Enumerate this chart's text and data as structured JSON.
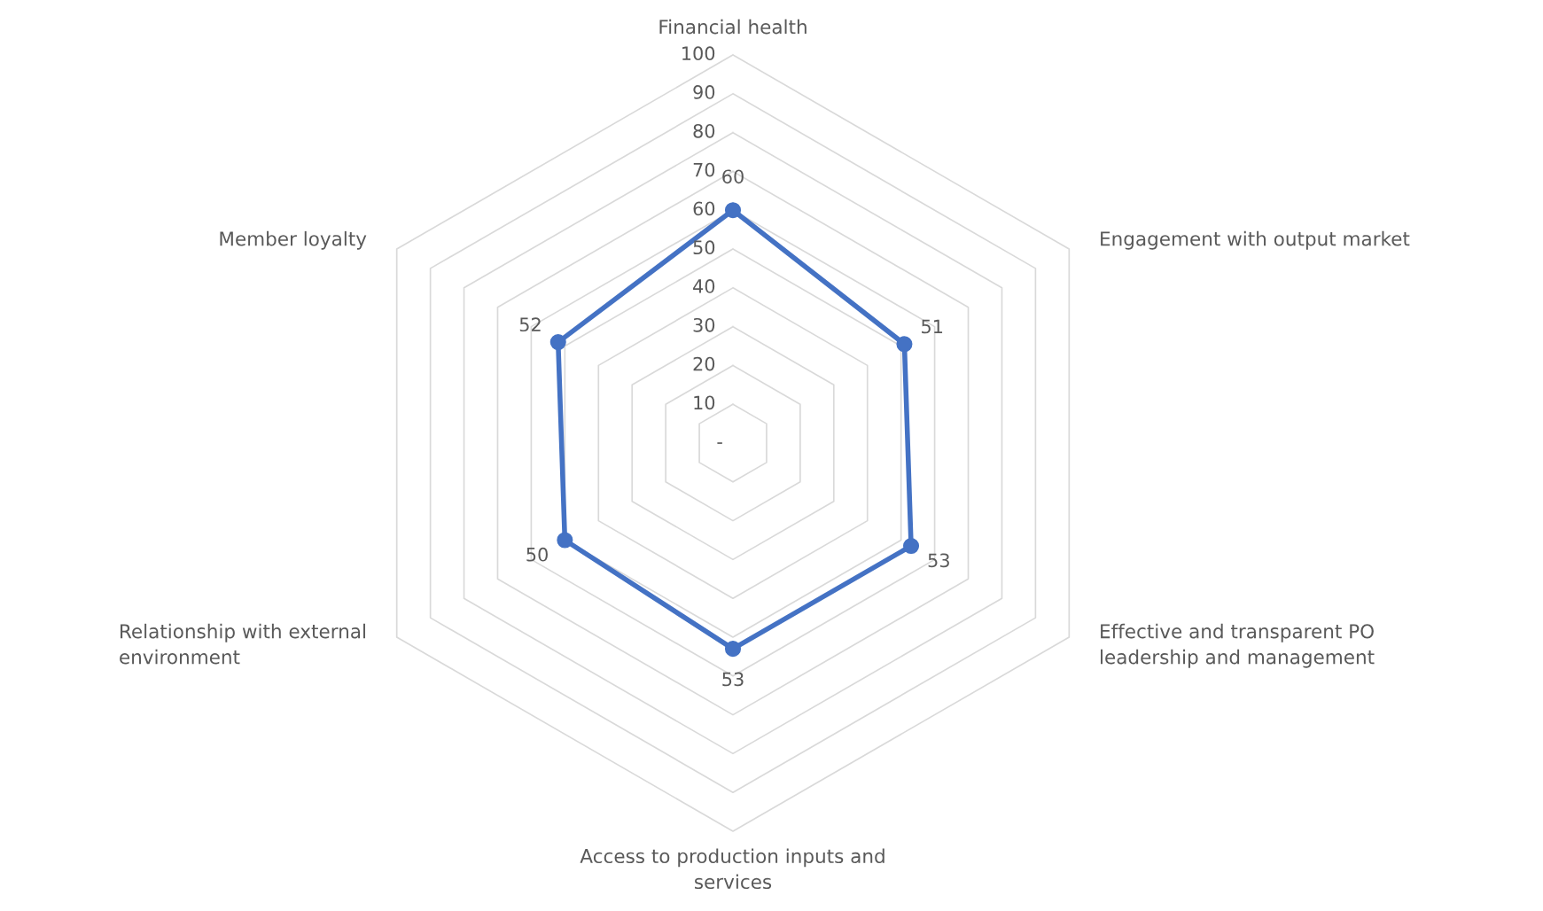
{
  "chart_data": {
    "type": "radar",
    "categories": [
      "Financial health",
      "Engagement with output market",
      "Effective and transparent PO\nleadership and management",
      "Access to production inputs and\nservices",
      "Relationship with external\nenvironment",
      "Member loyalty"
    ],
    "series": [
      {
        "color": "#4472c4",
        "values": [
          60,
          51,
          53,
          53,
          50,
          52
        ]
      }
    ],
    "ylim": [
      0,
      100
    ],
    "yticks": [
      {
        "value": 0,
        "label": "-"
      },
      10,
      20,
      30,
      40,
      50,
      60,
      70,
      80,
      90,
      100
    ],
    "grid": true,
    "marker": "circle",
    "data_labels": true
  }
}
